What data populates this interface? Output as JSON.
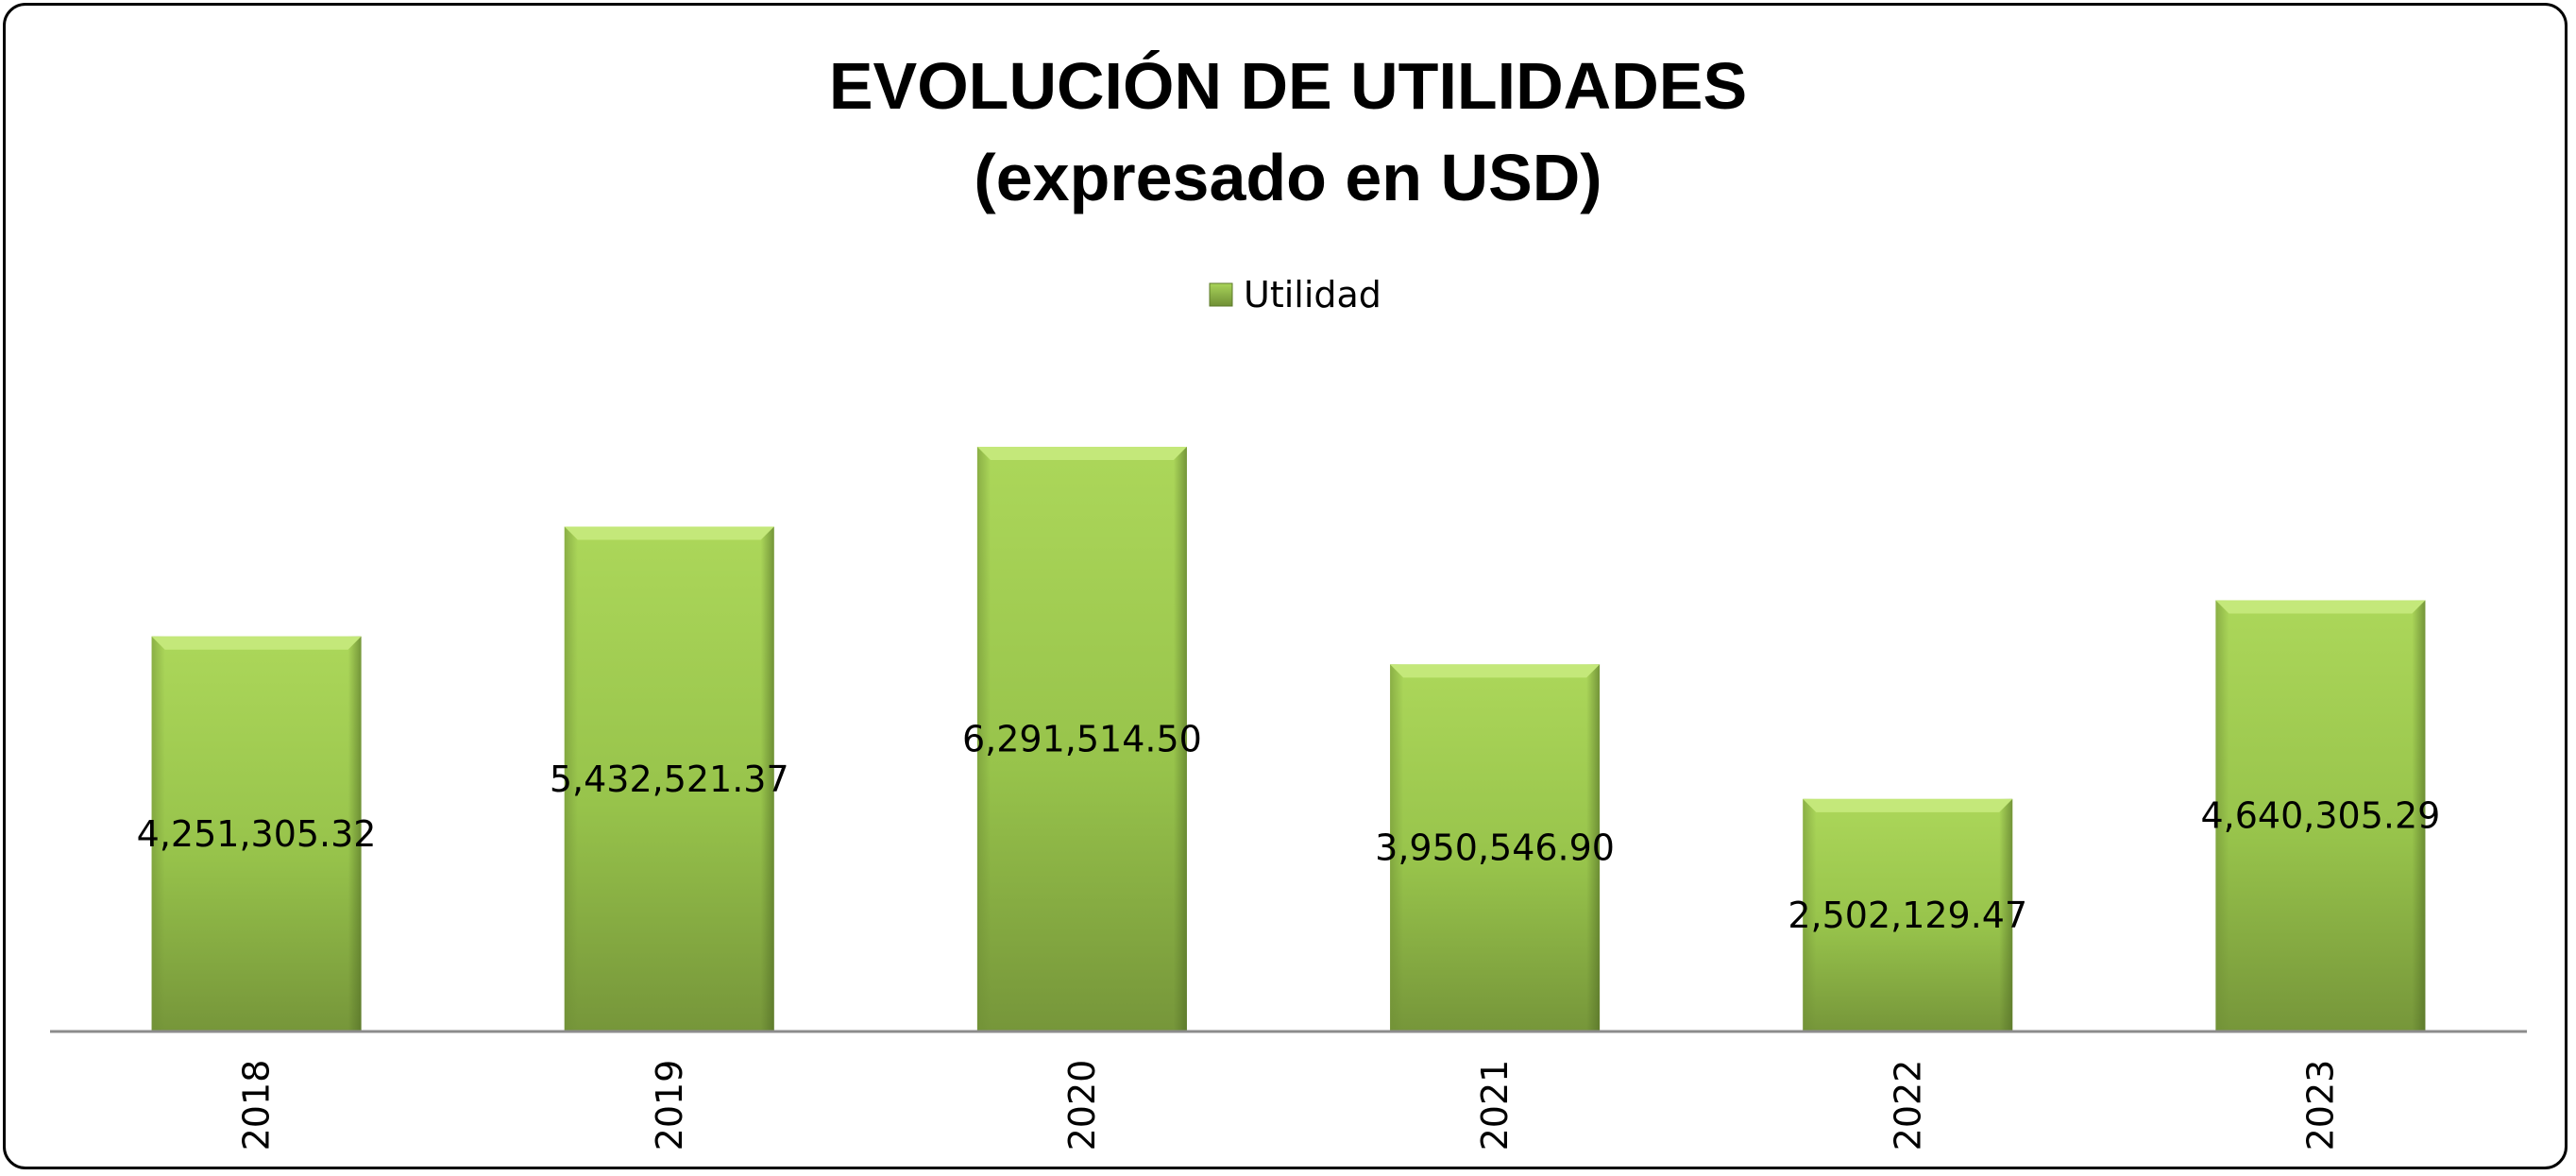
{
  "chart_data": {
    "type": "bar",
    "title": "EVOLUCIÓN DE UTILIDADES",
    "subtitle": "(expresado en USD)",
    "categories": [
      "2018",
      "2019",
      "2020",
      "2021",
      "2022",
      "2023"
    ],
    "series": [
      {
        "name": "Utilidad",
        "values": [
          4251305.32,
          5432521.37,
          6291514.5,
          3950546.9,
          2502129.47,
          4640305.29
        ],
        "labels": [
          "4,251,305.32",
          "5,432,521.37",
          "6,291,514.50",
          "3,950,546.90",
          "2,502,129.47",
          "4,640,305.29"
        ],
        "color": "#8cb944"
      }
    ],
    "ylim": [
      0,
      7000000
    ],
    "grid": false,
    "legend_position": "top-center",
    "xlabel": "",
    "ylabel": ""
  }
}
